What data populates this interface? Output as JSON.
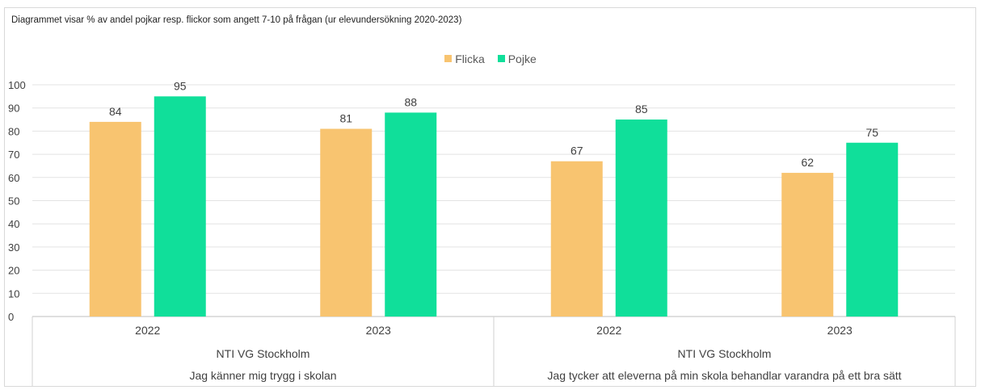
{
  "chart_data": {
    "type": "bar",
    "title": "Diagrammet visar % av andel pojkar resp. flickor som angett 7-10 på frågan (ur elevundersökning 2020-2023)",
    "legend_position": "top-center",
    "grid": true,
    "ylim": [
      0,
      100
    ],
    "yticks": [
      "0",
      "10",
      "20",
      "30",
      "40",
      "50",
      "60",
      "70",
      "80",
      "90",
      "100"
    ],
    "categories": [
      "2022",
      "2023",
      "2022",
      "2023"
    ],
    "group_level_1": [
      "NTI VG Stockholm",
      "NTI VG Stockholm"
    ],
    "group_level_2": [
      "Jag känner mig trygg i skolan",
      "Jag tycker att eleverna på min skola behandlar varandra på ett bra sätt"
    ],
    "series": [
      {
        "name": "Flicka",
        "color": "#F8C470",
        "values": [
          84,
          81,
          67,
          62
        ]
      },
      {
        "name": "Pojke",
        "color": "#10DF9A",
        "values": [
          95,
          88,
          85,
          75
        ]
      }
    ]
  }
}
